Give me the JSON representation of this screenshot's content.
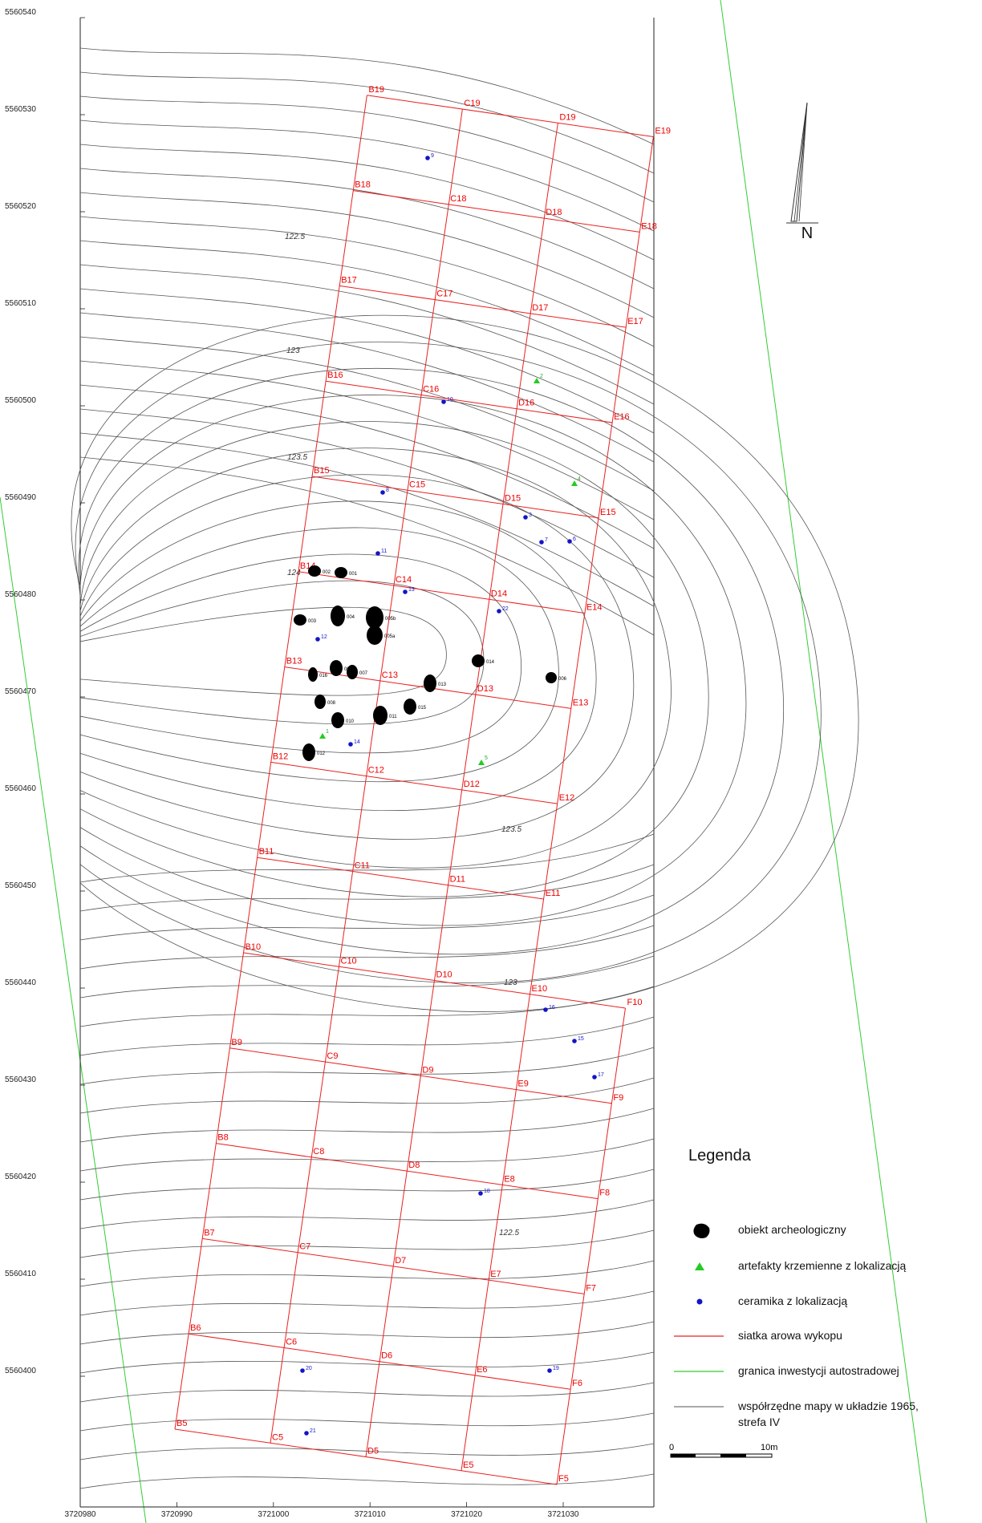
{
  "y_axis": [
    "5560540",
    "5560530",
    "5560520",
    "5560510",
    "5560500",
    "5560490",
    "5560480",
    "5560470",
    "5560460",
    "5560450",
    "5560440",
    "5560430",
    "5560420",
    "5560410",
    "5560400"
  ],
  "x_axis": [
    "3720980",
    "3720990",
    "3721000",
    "3721010",
    "3721020",
    "3721030"
  ],
  "north_label": "N",
  "grid_cells": [
    {
      "id": "B19",
      "row": 19,
      "col": 0
    },
    {
      "id": "C19",
      "row": 19,
      "col": 1
    },
    {
      "id": "D19",
      "row": 19,
      "col": 2
    },
    {
      "id": "E19",
      "row": 19,
      "col": 3
    },
    {
      "id": "B18",
      "row": 18,
      "col": 0
    },
    {
      "id": "C18",
      "row": 18,
      "col": 1
    },
    {
      "id": "D18",
      "row": 18,
      "col": 2
    },
    {
      "id": "E18",
      "row": 18,
      "col": 3
    },
    {
      "id": "B17",
      "row": 17,
      "col": 0
    },
    {
      "id": "C17",
      "row": 17,
      "col": 1
    },
    {
      "id": "D17",
      "row": 17,
      "col": 2
    },
    {
      "id": "E17",
      "row": 17,
      "col": 3
    },
    {
      "id": "B16",
      "row": 16,
      "col": 0
    },
    {
      "id": "C16",
      "row": 16,
      "col": 1
    },
    {
      "id": "D16",
      "row": 16,
      "col": 2
    },
    {
      "id": "E16",
      "row": 16,
      "col": 3
    },
    {
      "id": "B15",
      "row": 15,
      "col": 0
    },
    {
      "id": "C15",
      "row": 15,
      "col": 1
    },
    {
      "id": "D15",
      "row": 15,
      "col": 2
    },
    {
      "id": "E15",
      "row": 15,
      "col": 3
    },
    {
      "id": "B14",
      "row": 14,
      "col": 0
    },
    {
      "id": "C14",
      "row": 14,
      "col": 1
    },
    {
      "id": "D14",
      "row": 14,
      "col": 2
    },
    {
      "id": "E14",
      "row": 14,
      "col": 3
    },
    {
      "id": "B13",
      "row": 13,
      "col": 0
    },
    {
      "id": "C13",
      "row": 13,
      "col": 1
    },
    {
      "id": "D13",
      "row": 13,
      "col": 2
    },
    {
      "id": "E13",
      "row": 13,
      "col": 3
    },
    {
      "id": "B12",
      "row": 12,
      "col": 0
    },
    {
      "id": "C12",
      "row": 12,
      "col": 1
    },
    {
      "id": "D12",
      "row": 12,
      "col": 2
    },
    {
      "id": "E12",
      "row": 12,
      "col": 3
    },
    {
      "id": "B11",
      "row": 11,
      "col": 0
    },
    {
      "id": "C11",
      "row": 11,
      "col": 1
    },
    {
      "id": "D11",
      "row": 11,
      "col": 2
    },
    {
      "id": "E11",
      "row": 11,
      "col": 3
    },
    {
      "id": "B10",
      "row": 10,
      "col": 0
    },
    {
      "id": "C10",
      "row": 10,
      "col": 1
    },
    {
      "id": "D10",
      "row": 10,
      "col": 2
    },
    {
      "id": "E10",
      "row": 10,
      "col": 3
    },
    {
      "id": "F10",
      "row": 10,
      "col": 4
    },
    {
      "id": "B9",
      "row": 9,
      "col": 0
    },
    {
      "id": "C9",
      "row": 9,
      "col": 1
    },
    {
      "id": "D9",
      "row": 9,
      "col": 2
    },
    {
      "id": "E9",
      "row": 9,
      "col": 3
    },
    {
      "id": "F9",
      "row": 9,
      "col": 4
    },
    {
      "id": "B8",
      "row": 8,
      "col": 0
    },
    {
      "id": "C8",
      "row": 8,
      "col": 1
    },
    {
      "id": "D8",
      "row": 8,
      "col": 2
    },
    {
      "id": "E8",
      "row": 8,
      "col": 3
    },
    {
      "id": "F8",
      "row": 8,
      "col": 4
    },
    {
      "id": "B7",
      "row": 7,
      "col": 0
    },
    {
      "id": "C7",
      "row": 7,
      "col": 1
    },
    {
      "id": "D7",
      "row": 7,
      "col": 2
    },
    {
      "id": "E7",
      "row": 7,
      "col": 3
    },
    {
      "id": "F7",
      "row": 7,
      "col": 4
    },
    {
      "id": "B6",
      "row": 6,
      "col": 0
    },
    {
      "id": "C6",
      "row": 6,
      "col": 1
    },
    {
      "id": "D6",
      "row": 6,
      "col": 2
    },
    {
      "id": "E6",
      "row": 6,
      "col": 3
    },
    {
      "id": "F6",
      "row": 6,
      "col": 4
    },
    {
      "id": "B5",
      "row": 5,
      "col": 0
    },
    {
      "id": "C5",
      "row": 5,
      "col": 1
    },
    {
      "id": "D5",
      "row": 5,
      "col": 2
    },
    {
      "id": "E5",
      "row": 5,
      "col": 3
    },
    {
      "id": "F5",
      "row": 5,
      "col": 4
    }
  ],
  "contour_labels": [
    "122.5",
    "123",
    "123.5",
    "124",
    "123.5",
    "123",
    "122.5"
  ],
  "objects": [
    "001",
    "002",
    "003",
    "005b",
    "005a",
    "004",
    "007",
    "013",
    "014",
    "016",
    "009",
    "008",
    "010",
    "011",
    "015",
    "012",
    "006"
  ],
  "ceramics": [
    "9",
    "10",
    "8",
    "3",
    "7",
    "6",
    "11",
    "13",
    "22",
    "12",
    "14",
    "16",
    "15",
    "17",
    "18",
    "19",
    "20",
    "21"
  ],
  "flints": [
    "2",
    "4",
    "1",
    "5"
  ],
  "legend": {
    "title": "Legenda",
    "object": "obiekt archeologiczny",
    "flint": "artefakty krzemienne z lokalizacją",
    "ceramic": "ceramika z lokalizacją",
    "grid": "siatka arowa wykopu",
    "boundary": "granica inwestycji autostradowej",
    "coords_line1": "współrzędne mapy w układzie 1965,",
    "coords_line2": "strefa IV"
  },
  "scale": {
    "start": "0",
    "end": "10m"
  },
  "colors": {
    "grid": "#e82020",
    "boundary": "#33cc33",
    "contour": "#555555",
    "ceramic": "#1414c8",
    "flint": "#22cc22",
    "object": "#000000"
  }
}
